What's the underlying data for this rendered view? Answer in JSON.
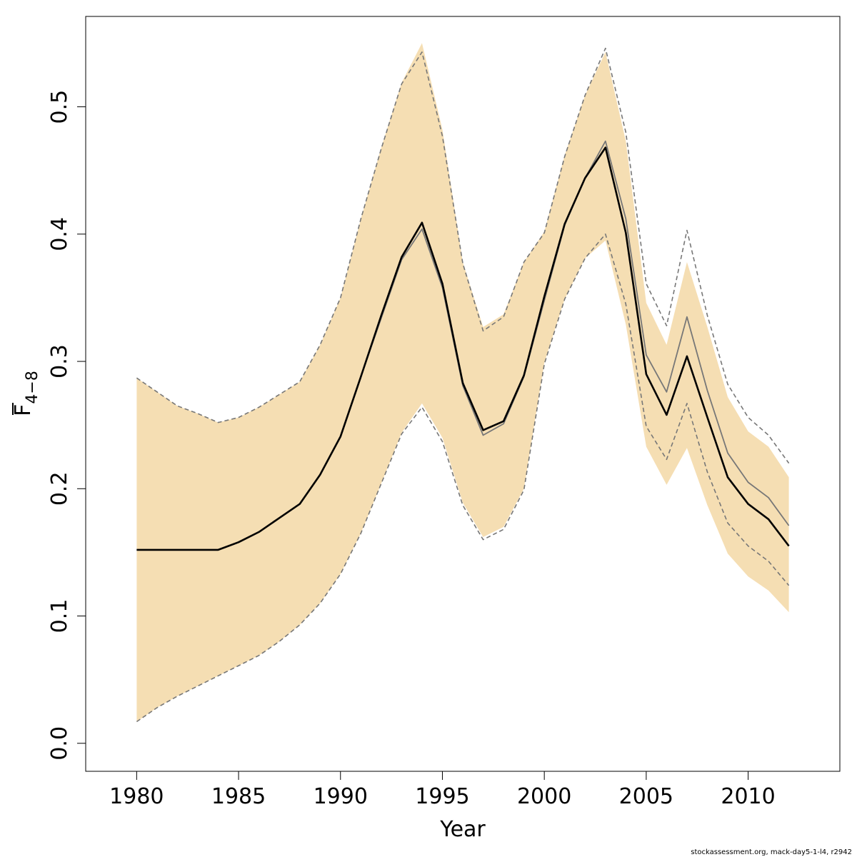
{
  "chart_data": {
    "type": "line",
    "xlabel": "Year",
    "ylabel": {
      "main": "F",
      "subscript": "4−8"
    },
    "xlim": [
      1977.5,
      2014.5
    ],
    "ylim": [
      -0.022,
      0.571
    ],
    "x_ticks": [
      {
        "value": 1980,
        "label": "1980"
      },
      {
        "value": 1985,
        "label": "1985"
      },
      {
        "value": 1990,
        "label": "1990"
      },
      {
        "value": 1995,
        "label": "1995"
      },
      {
        "value": 2000,
        "label": "2000"
      },
      {
        "value": 2005,
        "label": "2005"
      },
      {
        "value": 2010,
        "label": "2010"
      }
    ],
    "y_ticks": [
      {
        "value": 0.0,
        "label": "0.0"
      },
      {
        "value": 0.1,
        "label": "0.1"
      },
      {
        "value": 0.2,
        "label": "0.2"
      },
      {
        "value": 0.3,
        "label": "0.3"
      },
      {
        "value": 0.4,
        "label": "0.4"
      },
      {
        "value": 0.5,
        "label": "0.5"
      }
    ],
    "grid": false,
    "x": [
      1980,
      1981,
      1982,
      1983,
      1984,
      1985,
      1986,
      1987,
      1988,
      1989,
      1990,
      1991,
      1992,
      1993,
      1994,
      1995,
      1996,
      1997,
      1998,
      1999,
      2000,
      2001,
      2002,
      2003,
      2004,
      2005,
      2006,
      2007,
      2008,
      2009,
      2010,
      2011,
      2012
    ],
    "series": [
      {
        "role": "estimate",
        "style": "solid-black-thick",
        "values": [
          0.152,
          0.152,
          0.152,
          0.152,
          0.152,
          0.158,
          0.166,
          0.177,
          0.188,
          0.211,
          0.241,
          0.288,
          0.336,
          0.382,
          0.409,
          0.361,
          0.283,
          0.246,
          0.253,
          0.289,
          0.351,
          0.408,
          0.444,
          0.468,
          0.401,
          0.29,
          0.258,
          0.304,
          0.256,
          0.209,
          0.188,
          0.176,
          0.155
        ]
      },
      {
        "role": "band_upper",
        "style": "fill",
        "values": [
          0.287,
          0.276,
          0.265,
          0.259,
          0.252,
          0.256,
          0.264,
          0.274,
          0.284,
          0.313,
          0.35,
          0.412,
          0.468,
          0.519,
          0.55,
          0.482,
          0.378,
          0.327,
          0.337,
          0.378,
          0.402,
          0.462,
          0.509,
          0.543,
          0.473,
          0.346,
          0.313,
          0.378,
          0.327,
          0.272,
          0.245,
          0.233,
          0.209
        ]
      },
      {
        "role": "band_lower",
        "style": "fill",
        "values": [
          0.017,
          0.028,
          0.037,
          0.045,
          0.053,
          0.061,
          0.069,
          0.08,
          0.093,
          0.11,
          0.133,
          0.165,
          0.204,
          0.244,
          0.267,
          0.24,
          0.189,
          0.162,
          0.17,
          0.2,
          0.299,
          0.349,
          0.381,
          0.395,
          0.329,
          0.233,
          0.203,
          0.232,
          0.187,
          0.149,
          0.131,
          0.12,
          0.103
        ]
      },
      {
        "role": "previous_estimate",
        "style": "solid-grey-thin",
        "values": [
          0.152,
          0.152,
          0.152,
          0.152,
          0.152,
          0.158,
          0.166,
          0.177,
          0.188,
          0.211,
          0.241,
          0.288,
          0.334,
          0.38,
          0.404,
          0.358,
          0.281,
          0.242,
          0.251,
          0.288,
          0.348,
          0.407,
          0.444,
          0.473,
          0.412,
          0.305,
          0.276,
          0.335,
          0.277,
          0.228,
          0.205,
          0.193,
          0.171
        ]
      },
      {
        "role": "previous_upper",
        "style": "dashed-grey",
        "values": [
          0.287,
          0.276,
          0.265,
          0.259,
          0.252,
          0.256,
          0.264,
          0.274,
          0.284,
          0.313,
          0.35,
          0.412,
          0.467,
          0.518,
          0.543,
          0.477,
          0.377,
          0.324,
          0.335,
          0.378,
          0.401,
          0.461,
          0.509,
          0.546,
          0.48,
          0.361,
          0.328,
          0.403,
          0.336,
          0.282,
          0.256,
          0.242,
          0.22
        ]
      },
      {
        "role": "previous_lower",
        "style": "dashed-grey",
        "values": [
          0.017,
          0.028,
          0.037,
          0.045,
          0.053,
          0.061,
          0.069,
          0.08,
          0.093,
          0.11,
          0.133,
          0.165,
          0.204,
          0.243,
          0.264,
          0.237,
          0.187,
          0.16,
          0.168,
          0.199,
          0.298,
          0.349,
          0.381,
          0.4,
          0.345,
          0.249,
          0.223,
          0.267,
          0.213,
          0.173,
          0.155,
          0.143,
          0.124
        ]
      }
    ],
    "colors": {
      "band": "#F5DEB3",
      "estimate": "#000000",
      "previous": "#777777",
      "axis": "#000000"
    }
  },
  "footer": "stockassessment.org, mack-day5-1-l4, r2942"
}
